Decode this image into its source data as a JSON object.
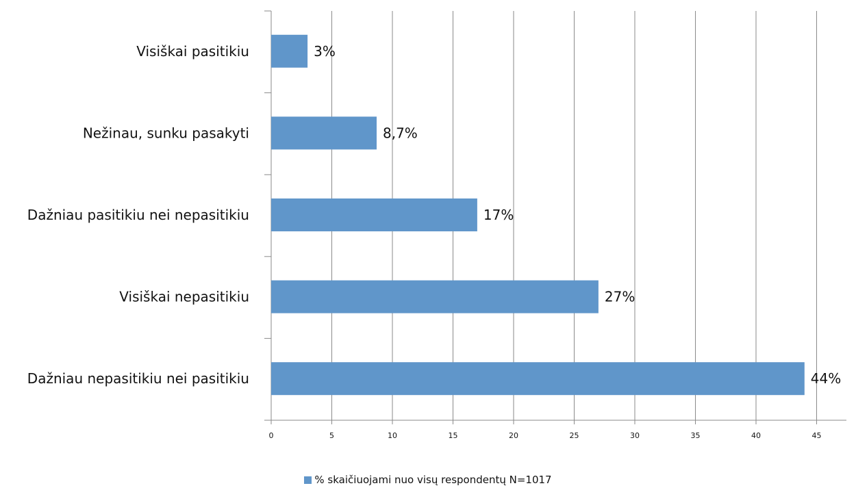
{
  "chart_data": {
    "type": "bar",
    "orientation": "horizontal",
    "categories": [
      "Visiškai pasitikiu",
      "Nežinau, sunku pasakyti",
      "Dažniau pasitikiu nei nepasitikiu",
      "Visiškai nepasitikiu",
      "Dažniau nepasitikiu nei pasitikiu"
    ],
    "series": [
      {
        "name": "% skaičiuojami nuo visų respondentų N=1017",
        "values": [
          3,
          8.7,
          17,
          27,
          44
        ],
        "labels": [
          "3%",
          "8,7%",
          "17%",
          "27%",
          "44%"
        ],
        "color": "#6096CA"
      }
    ],
    "xticks": [
      "0",
      "5",
      "10",
      "15",
      "20",
      "25",
      "30",
      "35",
      "40",
      "45"
    ],
    "xlim": [
      0,
      48
    ],
    "grid": true,
    "legend_position": "bottom"
  }
}
